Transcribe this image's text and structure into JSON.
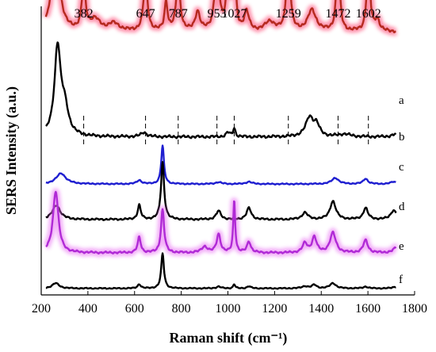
{
  "chart_data": {
    "type": "line",
    "title": "",
    "xlabel": "Raman shift (cm⁻¹)",
    "ylabel": "SERS Intensity (a.u.)",
    "xlim": [
      200,
      1800
    ],
    "x_ticks": [
      "200",
      "400",
      "600",
      "800",
      "1000",
      "1200",
      "1400",
      "1600",
      "1800"
    ],
    "y_ticks": [],
    "grid": false,
    "legend": "none",
    "peak_labels": [
      {
        "x": 382,
        "label": "382"
      },
      {
        "x": 647,
        "label": "647"
      },
      {
        "x": 787,
        "label": "787"
      },
      {
        "x": 953,
        "label": "953"
      },
      {
        "x": 1027,
        "label": "1027"
      },
      {
        "x": 1259,
        "label": "1259"
      },
      {
        "x": 1472,
        "label": "1472"
      },
      {
        "x": 1602,
        "label": "1602"
      }
    ],
    "series": [
      {
        "label": "a",
        "color": "#b52a1f",
        "glow": "#ff3b6b",
        "baseline": 0.89,
        "peaks": [
          [
            262,
            1.0,
            18
          ],
          [
            382,
            0.5,
            9
          ],
          [
            430,
            0.12,
            25
          ],
          [
            510,
            0.08,
            30
          ],
          [
            647,
            0.55,
            10
          ],
          [
            735,
            0.3,
            8
          ],
          [
            787,
            0.55,
            10
          ],
          [
            870,
            0.2,
            12
          ],
          [
            953,
            0.72,
            11
          ],
          [
            1000,
            0.55,
            9
          ],
          [
            1027,
            1.0,
            6
          ],
          [
            1080,
            0.2,
            12
          ],
          [
            1180,
            0.1,
            25
          ],
          [
            1259,
            1.0,
            8
          ],
          [
            1360,
            0.22,
            22
          ],
          [
            1472,
            0.85,
            8
          ],
          [
            1602,
            0.8,
            8
          ],
          [
            1640,
            0.12,
            12
          ]
        ]
      },
      {
        "label": "b",
        "color": "#000000",
        "glow": "",
        "baseline": 0.13,
        "peaks": [
          [
            270,
            1.0,
            16
          ],
          [
            300,
            0.3,
            20
          ],
          [
            640,
            0.05,
            15
          ],
          [
            1000,
            0.05,
            10
          ],
          [
            1027,
            0.1,
            6
          ],
          [
            1350,
            0.22,
            20
          ],
          [
            1380,
            0.12,
            15
          ],
          [
            1500,
            0.03,
            30
          ],
          [
            1720,
            0.03,
            20
          ]
        ]
      },
      {
        "label": "c",
        "color": "#1f1fd0",
        "glow": "",
        "baseline": 0.08,
        "peaks": [
          [
            285,
            0.28,
            25
          ],
          [
            620,
            0.1,
            12
          ],
          [
            720,
            1.0,
            7
          ],
          [
            960,
            0.05,
            15
          ],
          [
            1090,
            0.06,
            15
          ],
          [
            1460,
            0.16,
            18
          ],
          [
            1590,
            0.14,
            12
          ],
          [
            1710,
            0.06,
            15
          ]
        ]
      },
      {
        "label": "d",
        "color": "#000000",
        "glow": "",
        "baseline": 0.14,
        "peaks": [
          [
            265,
            0.25,
            20
          ],
          [
            620,
            0.25,
            8
          ],
          [
            720,
            1.0,
            8
          ],
          [
            960,
            0.15,
            12
          ],
          [
            1090,
            0.2,
            12
          ],
          [
            1330,
            0.12,
            15
          ],
          [
            1450,
            0.32,
            15
          ],
          [
            1590,
            0.2,
            12
          ],
          [
            1710,
            0.16,
            15
          ]
        ]
      },
      {
        "label": "e",
        "color": "#b02ad6",
        "glow": "#e86cf2",
        "baseline": 0.09,
        "peaks": [
          [
            262,
            1.0,
            14
          ],
          [
            620,
            0.25,
            8
          ],
          [
            720,
            0.7,
            8
          ],
          [
            900,
            0.1,
            15
          ],
          [
            960,
            0.3,
            10
          ],
          [
            1027,
            0.85,
            5
          ],
          [
            1090,
            0.18,
            10
          ],
          [
            1330,
            0.15,
            12
          ],
          [
            1370,
            0.25,
            12
          ],
          [
            1450,
            0.32,
            15
          ],
          [
            1590,
            0.2,
            12
          ],
          [
            1720,
            0.08,
            15
          ]
        ]
      },
      {
        "label": "f",
        "color": "#000000",
        "glow": "",
        "baseline": 0.05,
        "peaks": [
          [
            262,
            0.15,
            18
          ],
          [
            620,
            0.12,
            8
          ],
          [
            720,
            1.0,
            7
          ],
          [
            960,
            0.05,
            12
          ],
          [
            1027,
            0.12,
            5
          ],
          [
            1090,
            0.06,
            10
          ],
          [
            1330,
            0.06,
            15
          ],
          [
            1370,
            0.1,
            12
          ],
          [
            1450,
            0.15,
            15
          ],
          [
            1590,
            0.05,
            12
          ],
          [
            1720,
            0.05,
            15
          ]
        ]
      }
    ]
  }
}
